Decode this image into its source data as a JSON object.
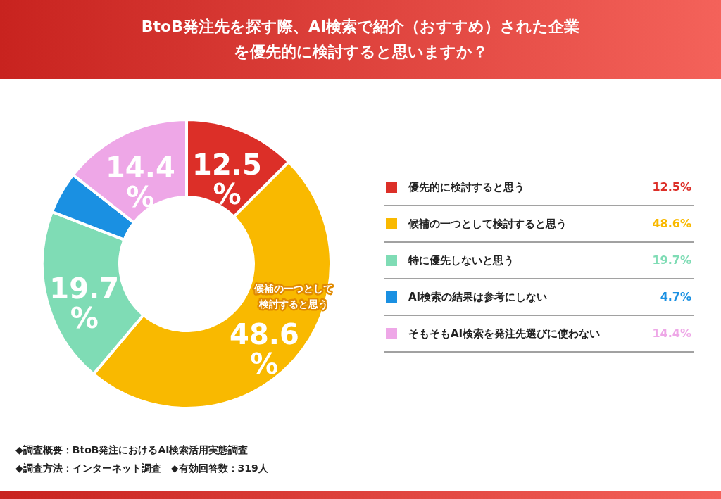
{
  "chart_data": {
    "type": "donut",
    "title": "BtoB発注先を探す際、AI検索で紹介（おすすめ）された企業を優先的に検討すると思いますか？",
    "categories": [
      "優先的に検討すると思う",
      "候補の一つとして検討すると思う",
      "特に優先しないと思う",
      "AI検索の結果は参考にしない",
      "そもそもAI検索を発注先選びに使わない"
    ],
    "values": [
      12.5,
      48.6,
      19.7,
      4.7,
      14.4
    ],
    "colors": [
      "#dc2f28",
      "#f9b900",
      "#7fdcb5",
      "#1a90e2",
      "#eea7e7"
    ],
    "value_labels": [
      "12.5%",
      "48.6%",
      "19.7%",
      "4.7%",
      "14.4%"
    ],
    "legend": "right",
    "annotations": [
      {
        "text": "候補の一つとして検討すると思う",
        "x": "候補の一つとして検討すると思う"
      },
      "◆調査概要：BtoB発注におけるAI検索活用実態調査",
      "◆調査方法：インターネット調査　◆有効回答数：319人"
    ]
  }
}
